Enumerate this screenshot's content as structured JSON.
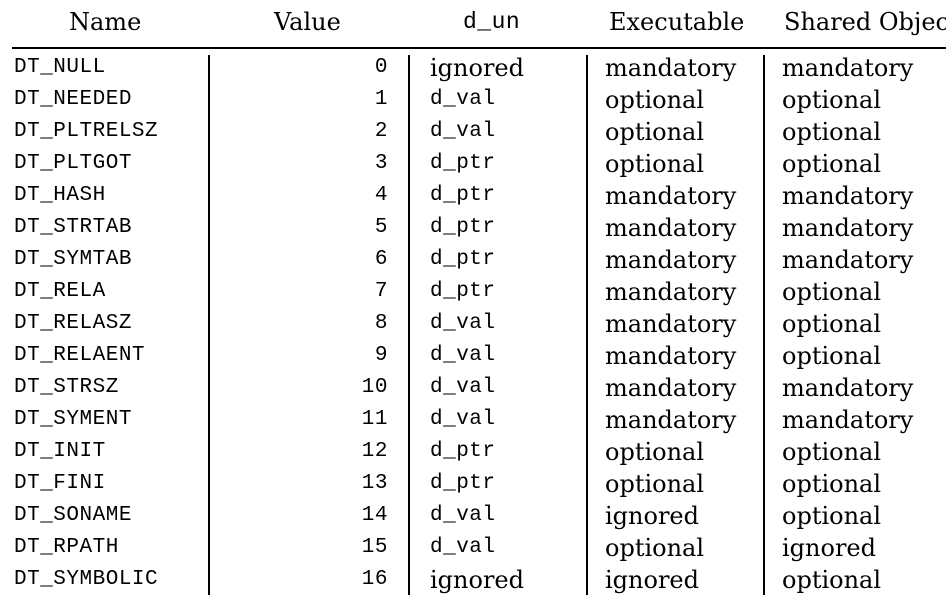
{
  "columns": {
    "name": "Name",
    "value": "Value",
    "d_un": "d_un",
    "executable": "Executable",
    "shared_object": "Shared Object"
  },
  "rows": [
    {
      "name": "DT_NULL",
      "value": "0",
      "d_un": "ignored",
      "executable": "mandatory",
      "shared_object": "mandatory"
    },
    {
      "name": "DT_NEEDED",
      "value": "1",
      "d_un": "d_val",
      "executable": "optional",
      "shared_object": "optional"
    },
    {
      "name": "DT_PLTRELSZ",
      "value": "2",
      "d_un": "d_val",
      "executable": "optional",
      "shared_object": "optional"
    },
    {
      "name": "DT_PLTGOT",
      "value": "3",
      "d_un": "d_ptr",
      "executable": "optional",
      "shared_object": "optional"
    },
    {
      "name": "DT_HASH",
      "value": "4",
      "d_un": "d_ptr",
      "executable": "mandatory",
      "shared_object": "mandatory"
    },
    {
      "name": "DT_STRTAB",
      "value": "5",
      "d_un": "d_ptr",
      "executable": "mandatory",
      "shared_object": "mandatory"
    },
    {
      "name": "DT_SYMTAB",
      "value": "6",
      "d_un": "d_ptr",
      "executable": "mandatory",
      "shared_object": "mandatory"
    },
    {
      "name": "DT_RELA",
      "value": "7",
      "d_un": "d_ptr",
      "executable": "mandatory",
      "shared_object": "optional"
    },
    {
      "name": "DT_RELASZ",
      "value": "8",
      "d_un": "d_val",
      "executable": "mandatory",
      "shared_object": "optional"
    },
    {
      "name": "DT_RELAENT",
      "value": "9",
      "d_un": "d_val",
      "executable": "mandatory",
      "shared_object": "optional"
    },
    {
      "name": "DT_STRSZ",
      "value": "10",
      "d_un": "d_val",
      "executable": "mandatory",
      "shared_object": "mandatory"
    },
    {
      "name": "DT_SYMENT",
      "value": "11",
      "d_un": "d_val",
      "executable": "mandatory",
      "shared_object": "mandatory"
    },
    {
      "name": "DT_INIT",
      "value": "12",
      "d_un": "d_ptr",
      "executable": "optional",
      "shared_object": "optional"
    },
    {
      "name": "DT_FINI",
      "value": "13",
      "d_un": "d_ptr",
      "executable": "optional",
      "shared_object": "optional"
    },
    {
      "name": "DT_SONAME",
      "value": "14",
      "d_un": "d_val",
      "executable": "ignored",
      "shared_object": "optional"
    },
    {
      "name": "DT_RPATH",
      "value": "15",
      "d_un": "d_val",
      "executable": "optional",
      "shared_object": "ignored"
    },
    {
      "name": "DT_SYMBOLIC",
      "value": "16",
      "d_un": "ignored",
      "executable": "ignored",
      "shared_object": "optional"
    }
  ]
}
